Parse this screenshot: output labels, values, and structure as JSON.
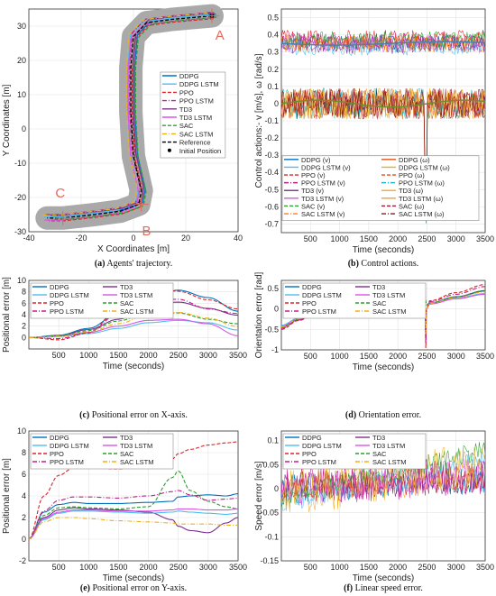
{
  "chart_data": [
    {
      "id": "a",
      "type": "line",
      "caption_tag": "(a)",
      "caption": "Agents' trajectory.",
      "xlabel": "X Coordinates [m]",
      "ylabel": "Y Coordinates [m]",
      "xlim": [
        -40,
        40
      ],
      "ylim": [
        -30,
        35
      ],
      "xticks": [
        -40,
        -20,
        0,
        20,
        40
      ],
      "yticks": [
        -30,
        -20,
        -10,
        0,
        10,
        20,
        30
      ],
      "grid": true,
      "legend_position": "right",
      "annotations": [
        "A",
        "B",
        "C"
      ],
      "series": [
        {
          "name": "DDPG",
          "color": "#0072BD",
          "dash": "solid"
        },
        {
          "name": "DDPG LSTM",
          "color": "#4DBEEE",
          "dash": "solid"
        },
        {
          "name": "PPO",
          "color": "#D9262B",
          "dash": "dashed"
        },
        {
          "name": "PPO LSTM",
          "color": "#C0208A",
          "dash": "dashdot"
        },
        {
          "name": "TD3",
          "color": "#7E2F8E",
          "dash": "solid"
        },
        {
          "name": "TD3 LSTM",
          "color": "#D955E6",
          "dash": "solid"
        },
        {
          "name": "SAC",
          "color": "#2CA02C",
          "dash": "dashed"
        },
        {
          "name": "SAC LSTM",
          "color": "#EDB120",
          "dash": "dashdot"
        },
        {
          "name": "Reference",
          "color": "#000000",
          "dash": "dashed"
        },
        {
          "name": "Initial Position",
          "color": "#000000",
          "dash": "marker"
        }
      ],
      "reference_path": [
        [
          30,
          33
        ],
        [
          15,
          32
        ],
        [
          5,
          31
        ],
        [
          0,
          27
        ],
        [
          -1,
          18
        ],
        [
          -1,
          5
        ],
        [
          0,
          -8
        ],
        [
          3,
          -18
        ],
        [
          2,
          -22
        ],
        [
          -5,
          -24
        ],
        [
          -15,
          -25
        ],
        [
          -27,
          -26
        ],
        [
          -33,
          -26
        ]
      ],
      "initial_position": [
        30,
        33
      ]
    },
    {
      "id": "b",
      "type": "line",
      "caption_tag": "(b)",
      "caption": "Control actions.",
      "xlabel": "Time (seconds)",
      "ylabel": "Control actions:- v [m/s], ω [rad/s]",
      "xlim": [
        0,
        3500
      ],
      "ylim": [
        -0.75,
        0.55
      ],
      "xticks": [
        500,
        1000,
        1500,
        2000,
        2500,
        3000,
        3500
      ],
      "yticks": [
        -0.7,
        -0.6,
        -0.5,
        -0.4,
        -0.3,
        -0.2,
        -0.1,
        0,
        0.1,
        0.2,
        0.3,
        0.4,
        0.5
      ],
      "grid": true,
      "legend_position": "bottom",
      "series": [
        {
          "name": "DDPG (v)",
          "color": "#0072BD",
          "dash": "solid",
          "level": 0.35
        },
        {
          "name": "DDPG (ω)",
          "color": "#D95319",
          "dash": "solid",
          "level": 0.0
        },
        {
          "name": "DDPG LSTM (v)",
          "color": "#4DBEEE",
          "dash": "solid",
          "level": 0.33
        },
        {
          "name": "DDPG LSTM (ω)",
          "color": "#EDB120",
          "dash": "solid",
          "level": 0.0
        },
        {
          "name": "PPO (v)",
          "color": "#D9262B",
          "dash": "dashed",
          "level": 0.38
        },
        {
          "name": "PPO (ω)",
          "color": "#D95319",
          "dash": "dashed",
          "level": 0.0
        },
        {
          "name": "PPO LSTM (v)",
          "color": "#C0208A",
          "dash": "dashdot",
          "level": 0.36
        },
        {
          "name": "PPO LSTM (ω)",
          "color": "#17BECF",
          "dash": "dashdot",
          "level": 0.0
        },
        {
          "name": "TD3 (v)",
          "color": "#7E2F8E",
          "dash": "solid",
          "level": 0.34
        },
        {
          "name": "TD3 (ω)",
          "color": "#EDB120",
          "dash": "solid",
          "level": 0.0
        },
        {
          "name": "TD3 LSTM (v)",
          "color": "#D955E6",
          "dash": "solid",
          "level": 0.35
        },
        {
          "name": "TD3 LSTM (ω)",
          "color": "#E8A33D",
          "dash": "solid",
          "level": 0.0
        },
        {
          "name": "SAC (v)",
          "color": "#2CA02C",
          "dash": "dashed",
          "level": 0.37
        },
        {
          "name": "SAC (ω)",
          "color": "#A2142F",
          "dash": "dashed",
          "level": 0.0
        },
        {
          "name": "SAC LSTM (v)",
          "color": "#FF7F0E",
          "dash": "dashdot",
          "level": 0.35
        },
        {
          "name": "SAC LSTM (ω)",
          "color": "#8B1A1A",
          "dash": "dashdot",
          "level": 0.0
        }
      ],
      "spike": {
        "time": 2480,
        "min": -0.7
      }
    },
    {
      "id": "c",
      "type": "line",
      "caption_tag": "(c)",
      "caption": "Positional error on X-axis.",
      "xlabel": "Time (seconds)",
      "ylabel": "Positional error [m]",
      "xlim": [
        0,
        3500
      ],
      "ylim": [
        -2,
        10
      ],
      "xticks": [
        500,
        1000,
        1500,
        2000,
        2500,
        3000,
        3500
      ],
      "yticks": [
        0,
        2,
        4,
        6,
        8,
        10
      ],
      "grid": true,
      "legend_position": "top",
      "x": [
        0,
        500,
        1000,
        1500,
        2000,
        2500,
        3000,
        3500
      ],
      "series": [
        {
          "name": "DDPG",
          "color": "#0072BD",
          "dash": "solid",
          "values": [
            0,
            0.4,
            1.6,
            4.2,
            6.9,
            8.3,
            7.0,
            4.6
          ]
        },
        {
          "name": "TD3",
          "color": "#7E2F8E",
          "dash": "solid",
          "values": [
            0,
            0.3,
            1.4,
            3.2,
            5.5,
            6.2,
            5.1,
            3.9
          ]
        },
        {
          "name": "DDPG LSTM",
          "color": "#4DBEEE",
          "dash": "solid",
          "values": [
            0,
            0.2,
            0.7,
            1.6,
            2.6,
            3.0,
            2.6,
            1.3
          ]
        },
        {
          "name": "TD3 LSTM",
          "color": "#D955E6",
          "dash": "solid",
          "values": [
            0,
            0.2,
            0.9,
            2.0,
            3.0,
            3.2,
            2.4,
            0.3
          ]
        },
        {
          "name": "PPO",
          "color": "#D9262B",
          "dash": "dashed",
          "values": [
            0,
            -0.4,
            0.8,
            5.0,
            8.9,
            8.1,
            6.6,
            5.0
          ]
        },
        {
          "name": "SAC",
          "color": "#2CA02C",
          "dash": "dashed",
          "values": [
            0,
            0.3,
            1.2,
            2.9,
            4.5,
            4.3,
            3.2,
            2.4
          ]
        },
        {
          "name": "PPO LSTM",
          "color": "#C0208A",
          "dash": "dashdot",
          "values": [
            0,
            -0.2,
            0.9,
            4.2,
            6.6,
            6.7,
            5.0,
            4.2
          ]
        },
        {
          "name": "SAC LSTM",
          "color": "#EDB120",
          "dash": "dashdot",
          "values": [
            0,
            0.2,
            1.0,
            2.4,
            4.1,
            4.4,
            3.4,
            1.9
          ]
        }
      ]
    },
    {
      "id": "d",
      "type": "line",
      "caption_tag": "(d)",
      "caption": "Orientation error.",
      "xlabel": "Time (seconds)",
      "ylabel": "Orientation error [rad]",
      "xlim": [
        0,
        3500
      ],
      "ylim": [
        -1,
        0.7
      ],
      "xticks": [
        500,
        1000,
        1500,
        2000,
        2500,
        3000,
        3500
      ],
      "yticks": [
        -1,
        -0.5,
        0,
        0.5
      ],
      "grid": true,
      "legend_position": "top",
      "x": [
        0,
        300,
        700,
        1000,
        1500,
        2000,
        2200,
        2400,
        2470,
        2480,
        2490,
        2550,
        3000,
        3500
      ],
      "series": [
        {
          "name": "DDPG",
          "color": "#0072BD",
          "dash": "solid",
          "values": [
            -0.45,
            -0.25,
            0.0,
            0.15,
            0.2,
            0.2,
            0.15,
            0.05,
            -0.1,
            -0.6,
            0.0,
            0.15,
            0.3,
            0.45
          ]
        },
        {
          "name": "TD3",
          "color": "#7E2F8E",
          "dash": "solid",
          "values": [
            -0.45,
            -0.26,
            0.0,
            0.14,
            0.19,
            0.19,
            0.14,
            0.03,
            -0.15,
            -0.7,
            0.0,
            0.14,
            0.29,
            0.44
          ]
        },
        {
          "name": "DDPG LSTM",
          "color": "#4DBEEE",
          "dash": "solid",
          "values": [
            -0.4,
            -0.22,
            0.02,
            0.15,
            0.2,
            0.2,
            0.15,
            0.05,
            -0.1,
            -0.5,
            0.0,
            0.13,
            0.26,
            0.38
          ]
        },
        {
          "name": "TD3 LSTM",
          "color": "#D955E6",
          "dash": "solid",
          "values": [
            -0.42,
            -0.24,
            0.01,
            0.14,
            0.2,
            0.2,
            0.16,
            0.05,
            -0.1,
            -0.55,
            0.0,
            0.12,
            0.25,
            0.36
          ]
        },
        {
          "name": "PPO",
          "color": "#D9262B",
          "dash": "dashed",
          "values": [
            -0.5,
            -0.28,
            0.0,
            0.16,
            0.25,
            0.27,
            0.2,
            0.1,
            -0.2,
            -0.95,
            0.0,
            0.2,
            0.4,
            0.6
          ]
        },
        {
          "name": "SAC",
          "color": "#2CA02C",
          "dash": "dashed",
          "values": [
            -0.45,
            -0.25,
            0.0,
            0.15,
            0.2,
            0.3,
            0.45,
            0.4,
            0.3,
            0.2,
            0.1,
            0.15,
            0.3,
            0.45
          ]
        },
        {
          "name": "PPO LSTM",
          "color": "#C0208A",
          "dash": "dashdot",
          "values": [
            -0.48,
            -0.27,
            0.0,
            0.16,
            0.24,
            0.25,
            0.18,
            0.08,
            -0.15,
            -0.8,
            0.0,
            0.18,
            0.36,
            0.55
          ]
        },
        {
          "name": "SAC LSTM",
          "color": "#EDB120",
          "dash": "dashdot",
          "values": [
            -0.44,
            -0.24,
            0.01,
            0.15,
            0.2,
            0.21,
            0.16,
            0.06,
            -0.1,
            -0.6,
            0.0,
            0.14,
            0.28,
            0.42
          ]
        }
      ]
    },
    {
      "id": "e",
      "type": "line",
      "caption_tag": "(e)",
      "caption": "Positional error on Y-axis.",
      "xlabel": "Time (seconds)",
      "ylabel": "Positional error [m]",
      "xlim": [
        0,
        3500
      ],
      "ylim": [
        -2,
        10
      ],
      "xticks": [
        500,
        1000,
        1500,
        2000,
        2500,
        3000,
        3500
      ],
      "yticks": [
        -2,
        0,
        2,
        4,
        6,
        8,
        10
      ],
      "grid": true,
      "legend_position": "top",
      "x": [
        0,
        250,
        500,
        750,
        1000,
        1500,
        2000,
        2400,
        2500,
        2700,
        3000,
        3300,
        3500
      ],
      "series": [
        {
          "name": "DDPG",
          "color": "#0072BD",
          "dash": "solid",
          "values": [
            0,
            2.5,
            3.2,
            3.4,
            3.3,
            3.3,
            3.4,
            3.5,
            3.9,
            4.0,
            4.1,
            4.0,
            4.2
          ]
        },
        {
          "name": "TD3",
          "color": "#7E2F8E",
          "dash": "solid",
          "values": [
            0,
            2.0,
            2.7,
            2.9,
            2.8,
            2.7,
            2.5,
            1.8,
            1.2,
            0.8,
            0.6,
            1.5,
            2.0
          ]
        },
        {
          "name": "DDPG LSTM",
          "color": "#4DBEEE",
          "dash": "solid",
          "values": [
            0,
            1.8,
            2.4,
            2.6,
            2.6,
            2.5,
            2.4,
            2.5,
            2.6,
            2.5,
            2.4,
            2.3,
            2.4
          ]
        },
        {
          "name": "TD3 LSTM",
          "color": "#D955E6",
          "dash": "solid",
          "values": [
            0,
            1.9,
            2.5,
            2.7,
            2.7,
            2.6,
            2.6,
            2.7,
            2.8,
            2.8,
            2.7,
            2.7,
            2.8
          ]
        },
        {
          "name": "PPO",
          "color": "#D9262B",
          "dash": "dashed",
          "values": [
            0,
            4.0,
            5.9,
            6.6,
            6.6,
            6.5,
            6.9,
            7.4,
            7.9,
            8.3,
            8.7,
            8.9,
            9.0
          ]
        },
        {
          "name": "SAC",
          "color": "#2CA02C",
          "dash": "dashed",
          "values": [
            0,
            2.2,
            2.9,
            3.0,
            2.9,
            2.8,
            3.0,
            5.7,
            6.3,
            4.5,
            3.5,
            3.0,
            2.8
          ]
        },
        {
          "name": "PPO LSTM",
          "color": "#C0208A",
          "dash": "dashdot",
          "values": [
            0,
            2.6,
            3.6,
            3.9,
            3.9,
            3.8,
            4.0,
            4.4,
            4.5,
            4.1,
            3.6,
            3.7,
            3.8
          ]
        },
        {
          "name": "SAC LSTM",
          "color": "#EDB120",
          "dash": "dashdot",
          "values": [
            0,
            1.6,
            2.0,
            2.0,
            1.9,
            1.7,
            1.6,
            1.5,
            1.4,
            1.4,
            1.4,
            1.3,
            1.3
          ]
        }
      ]
    },
    {
      "id": "f",
      "type": "line",
      "caption_tag": "(f)",
      "caption": "Linear speed error.",
      "xlabel": "Time (seconds)",
      "ylabel": "Speed error [m/s]",
      "xlim": [
        0,
        3500
      ],
      "ylim": [
        -0.15,
        0.12
      ],
      "xticks": [
        500,
        1000,
        1500,
        2000,
        2500,
        3000,
        3500
      ],
      "yticks": [
        -0.15,
        -0.1,
        -0.05,
        0,
        0.05,
        0.1
      ],
      "grid": true,
      "legend_position": "top",
      "series": [
        {
          "name": "DDPG",
          "color": "#0072BD",
          "dash": "solid",
          "trend": [
            0.0,
            0.02
          ]
        },
        {
          "name": "TD3",
          "color": "#7E2F8E",
          "dash": "solid",
          "trend": [
            0.0,
            0.03
          ]
        },
        {
          "name": "DDPG LSTM",
          "color": "#4DBEEE",
          "dash": "solid",
          "trend": [
            -0.03,
            0.06
          ]
        },
        {
          "name": "TD3 LSTM",
          "color": "#D955E6",
          "dash": "solid",
          "trend": [
            -0.01,
            0.04
          ]
        },
        {
          "name": "PPO",
          "color": "#D9262B",
          "dash": "dashed",
          "trend": [
            0.0,
            0.02
          ]
        },
        {
          "name": "SAC",
          "color": "#2CA02C",
          "dash": "dashed",
          "trend": [
            -0.02,
            0.08
          ]
        },
        {
          "name": "PPO LSTM",
          "color": "#C0208A",
          "dash": "dashdot",
          "trend": [
            0.0,
            0.03
          ]
        },
        {
          "name": "SAC LSTM",
          "color": "#EDB120",
          "dash": "dashdot",
          "trend": [
            -0.01,
            0.05
          ]
        }
      ]
    }
  ]
}
